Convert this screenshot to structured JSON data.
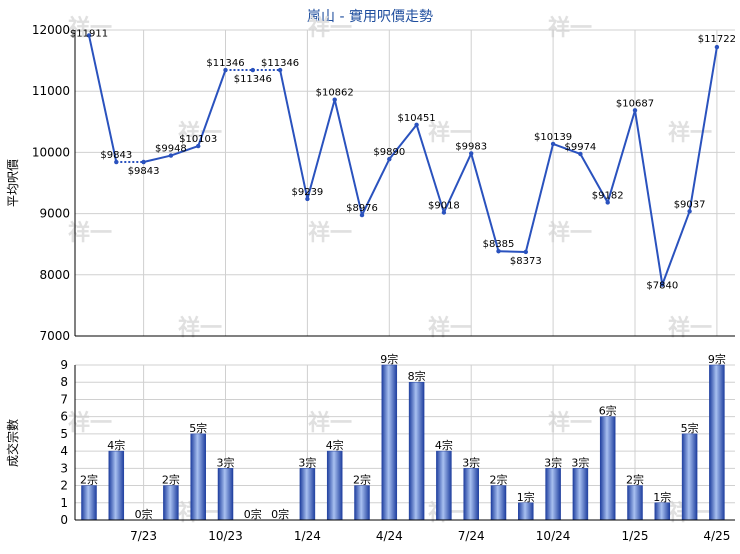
{
  "colors": {
    "line": "#2a52be",
    "grid": "#d0d0d0",
    "axis": "#000000",
    "bar_light": "#a8c0f0",
    "bar_dark": "#1f3f9f",
    "title": "#1f4e9e",
    "watermark": "#e0e0e0"
  },
  "watermark_text": "祥一",
  "chart_data": [
    {
      "type": "line",
      "title": "嵐山 - 實用呎價走勢",
      "ylabel": "平均呎價",
      "ylim": [
        7000,
        12000
      ],
      "yticks": [
        7000,
        8000,
        9000,
        10000,
        11000,
        12000
      ],
      "grid": true,
      "x": [
        0,
        1,
        2,
        3,
        4,
        5,
        6,
        7,
        8,
        9,
        10,
        11,
        12,
        13,
        14,
        15,
        16,
        17,
        18,
        19,
        20,
        21,
        22,
        23,
        24
      ],
      "values": [
        11911,
        9843,
        9843,
        9948,
        10103,
        11346,
        11346,
        11346,
        9239,
        10862,
        8976,
        9890,
        10451,
        9018,
        9983,
        8385,
        8373,
        10139,
        9974,
        9182,
        10687,
        7840,
        9037,
        11722,
        null
      ],
      "labels": [
        "$11911",
        "$9843",
        "$9843",
        "$9948",
        "$10103",
        "$11346",
        "$11346",
        "$11346",
        "$9239",
        "$10862",
        "$8976",
        "$9890",
        "$10451",
        "$9018",
        "$9983",
        "$8385",
        "$8373",
        "$10139",
        "$9974",
        "$9182",
        "$10687",
        "$7840",
        "$9037",
        "$11722"
      ],
      "interpolated_segments": [
        [
          1,
          2
        ],
        [
          5,
          7
        ]
      ]
    },
    {
      "type": "bar",
      "ylabel": "成交宗數",
      "ylim": [
        0,
        9
      ],
      "yticks": [
        0,
        1,
        2,
        3,
        4,
        5,
        6,
        7,
        8,
        9
      ],
      "grid": true,
      "categories": [
        0,
        1,
        2,
        3,
        4,
        5,
        6,
        7,
        8,
        9,
        10,
        11,
        12,
        13,
        14,
        15,
        16,
        17,
        18,
        19,
        20,
        21,
        22,
        23,
        24
      ],
      "values": [
        2,
        4,
        0,
        2,
        5,
        3,
        0,
        0,
        3,
        4,
        2,
        9,
        8,
        4,
        3,
        2,
        1,
        3,
        3,
        6,
        2,
        1,
        5,
        9
      ],
      "labels": [
        "2宗",
        "4宗",
        "0宗",
        "2宗",
        "5宗",
        "3宗",
        "0宗",
        "0宗",
        "3宗",
        "4宗",
        "2宗",
        "9宗",
        "8宗",
        "4宗",
        "3宗",
        "2宗",
        "1宗",
        "3宗",
        "3宗",
        "6宗",
        "2宗",
        "1宗",
        "5宗",
        "9宗"
      ],
      "xtick_labels": [
        {
          "label": "7/23",
          "at": 2
        },
        {
          "label": "10/23",
          "at": 5
        },
        {
          "label": "1/24",
          "at": 8
        },
        {
          "label": "4/24",
          "at": 11
        },
        {
          "label": "7/24",
          "at": 14
        },
        {
          "label": "10/24",
          "at": 17
        },
        {
          "label": "1/25",
          "at": 20
        },
        {
          "label": "4/25",
          "at": 23
        }
      ]
    }
  ]
}
